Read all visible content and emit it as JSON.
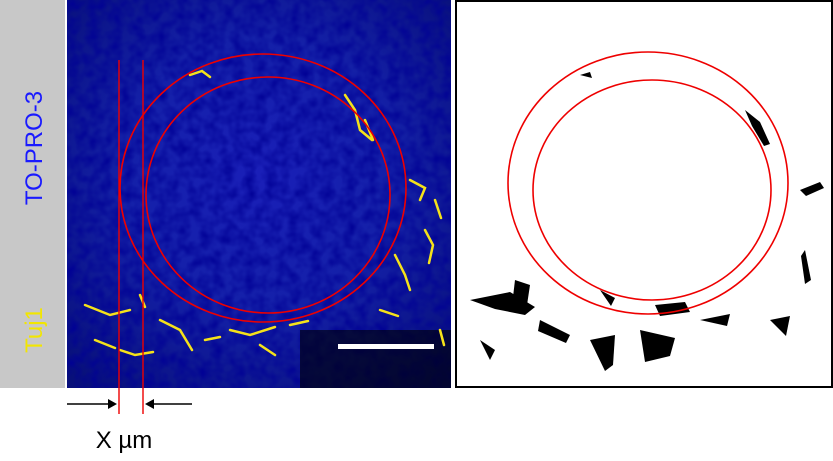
{
  "labels": {
    "marker1": "Tuj1",
    "marker2": "TO-PRO-3",
    "measurement": "X µm"
  }
}
